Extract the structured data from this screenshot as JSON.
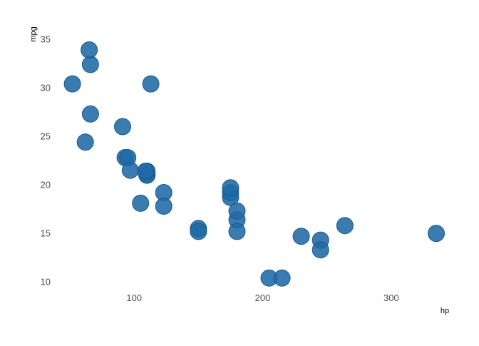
{
  "chart_data": {
    "type": "scatter",
    "title": "",
    "xlabel": "hp",
    "ylabel": "mpg",
    "xlim": [
      40,
      345
    ],
    "ylim": [
      9.2,
      36.4
    ],
    "x_ticks": [
      100,
      200,
      300
    ],
    "y_ticks": [
      10,
      15,
      20,
      25,
      30,
      35
    ],
    "grid": false,
    "legend": "none",
    "point_color": "#1f6aa5",
    "point_opacity": 0.88,
    "series": [
      {
        "points": [
          {
            "x": 110,
            "y": 21.0
          },
          {
            "x": 110,
            "y": 21.0
          },
          {
            "x": 93,
            "y": 22.8
          },
          {
            "x": 110,
            "y": 21.4
          },
          {
            "x": 175,
            "y": 18.7
          },
          {
            "x": 105,
            "y": 18.1
          },
          {
            "x": 245,
            "y": 14.3
          },
          {
            "x": 62,
            "y": 24.4
          },
          {
            "x": 95,
            "y": 22.8
          },
          {
            "x": 123,
            "y": 19.2
          },
          {
            "x": 123,
            "y": 17.8
          },
          {
            "x": 180,
            "y": 16.4
          },
          {
            "x": 180,
            "y": 17.3
          },
          {
            "x": 180,
            "y": 15.2
          },
          {
            "x": 205,
            "y": 10.4
          },
          {
            "x": 215,
            "y": 10.4
          },
          {
            "x": 230,
            "y": 14.7
          },
          {
            "x": 66,
            "y": 32.4
          },
          {
            "x": 52,
            "y": 30.4
          },
          {
            "x": 65,
            "y": 33.9
          },
          {
            "x": 97,
            "y": 21.5
          },
          {
            "x": 150,
            "y": 15.5
          },
          {
            "x": 150,
            "y": 15.2
          },
          {
            "x": 245,
            "y": 13.3
          },
          {
            "x": 175,
            "y": 19.2
          },
          {
            "x": 66,
            "y": 27.3
          },
          {
            "x": 91,
            "y": 26.0
          },
          {
            "x": 113,
            "y": 30.4
          },
          {
            "x": 264,
            "y": 15.8
          },
          {
            "x": 175,
            "y": 19.7
          },
          {
            "x": 335,
            "y": 15.0
          },
          {
            "x": 109,
            "y": 21.4
          }
        ]
      }
    ]
  }
}
